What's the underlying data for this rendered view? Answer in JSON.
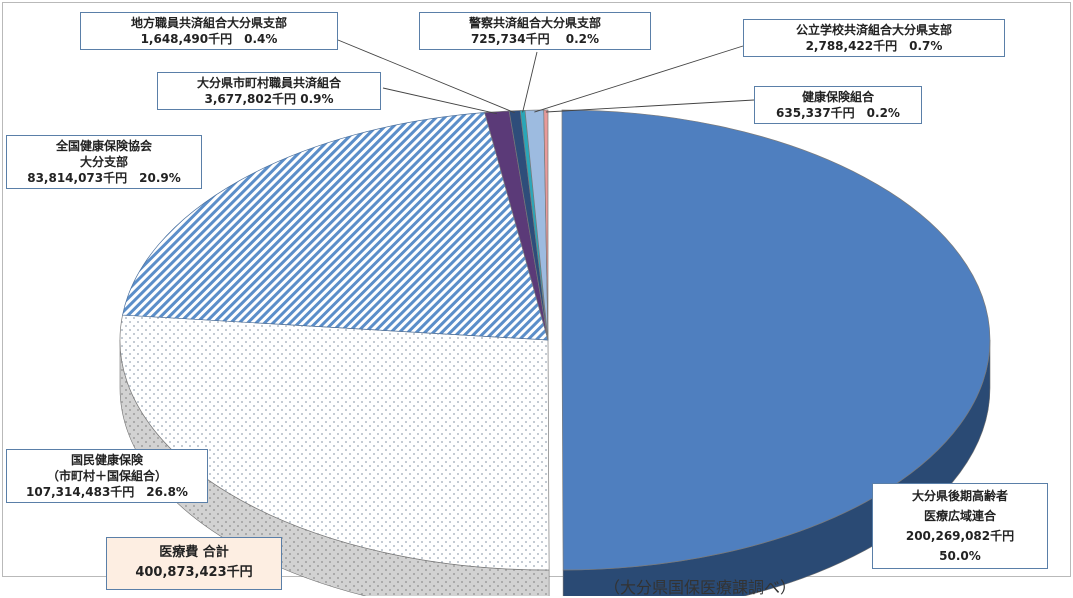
{
  "chart_data": {
    "type": "pie",
    "title": "",
    "slices": [
      {
        "name": "大分県後期高齢者 医療広域連合",
        "value_text": "200,269,082千円",
        "value": 200269082,
        "percent_text": "50.0%",
        "percent": 50.0,
        "color": "#4f7fbf",
        "side_color": "#2a4a74",
        "pattern": "solid"
      },
      {
        "name": "国民健康保険（市町村＋国保組合）",
        "value_text": "107,314,483千円",
        "value": 107314483,
        "percent_text": "26.8%",
        "percent": 26.8,
        "color": "#ffffff",
        "side_color": "#cfcfcf",
        "pattern": "dots"
      },
      {
        "name": "全国健康保険協会 大分支部",
        "value_text": "83,814,073千円",
        "value": 83814073,
        "percent_text": "20.9%",
        "percent": 20.9,
        "color": "#7aa3d6",
        "side_color": "#55595e",
        "pattern": "stripes"
      },
      {
        "name": "大分県市町村職員共済組合",
        "value_text": "3,677,802千円",
        "value": 3677802,
        "percent_text": "0.9%",
        "percent": 0.9,
        "color": "#5b3a78",
        "side_color": "#3a2550",
        "pattern": "solid"
      },
      {
        "name": "地方職員共済組合大分県支部",
        "value_text": "1,648,490千円",
        "value": 1648490,
        "percent_text": "0.4%",
        "percent": 0.4,
        "color": "#2e4d7a",
        "side_color": "#1d3352",
        "pattern": "solid"
      },
      {
        "name": "警察共済組合大分県支部",
        "value_text": "725,734千円",
        "value": 725734,
        "percent_text": "0.2%",
        "percent": 0.2,
        "color": "#2aa6b8",
        "side_color": "#1a7886",
        "pattern": "solid"
      },
      {
        "name": "公立学校共済組合大分県支部",
        "value_text": "2,788,422千円",
        "value": 2788422,
        "percent_text": "0.7%",
        "percent": 0.7,
        "color": "#9dbbe0",
        "side_color": "#6f8fb5",
        "pattern": "solid"
      },
      {
        "name": "健康保険組合",
        "value_text": "635,337千円",
        "value": 635337,
        "percent_text": "0.2%",
        "percent": 0.2,
        "color": "#e79a9a",
        "side_color": "#b56d6d",
        "pattern": "solid"
      }
    ],
    "total_label": "医療費 合計",
    "total_value_text": "400,873,423千円",
    "source": "（大分県国保医療課調べ）"
  },
  "labels": {
    "chiho": {
      "line1": "地方職員共済組合大分県支部",
      "line2": "1,648,490千円　0.4%"
    },
    "keisatsu": {
      "line1": "警察共済組合大分県支部",
      "line2": "725,734千円　 0.2%"
    },
    "kouritsu": {
      "line1": "公立学校共済組合大分県支部",
      "line2": "2,788,422千円　0.7%"
    },
    "shichouson": {
      "line1": "大分県市町村職員共済組合",
      "line2": "3,677,802千円 0.9%"
    },
    "kenpo": {
      "line1": "健康保険組合",
      "line2": "635,337千円　0.2%"
    },
    "kyokai": {
      "line1": "全国健康保険協会",
      "line2": "大分支部",
      "line3": "83,814,073千円　20.9%"
    },
    "kokuho": {
      "line1": "国民健康保険",
      "line2": "（市町村＋国保組合）",
      "line3": "107,314,483千円　26.8%"
    },
    "kouki": {
      "line1": "大分県後期高齢者",
      "line2": "医療広域連合",
      "line3": "200,269,082千円",
      "line4": "50.0%"
    }
  }
}
